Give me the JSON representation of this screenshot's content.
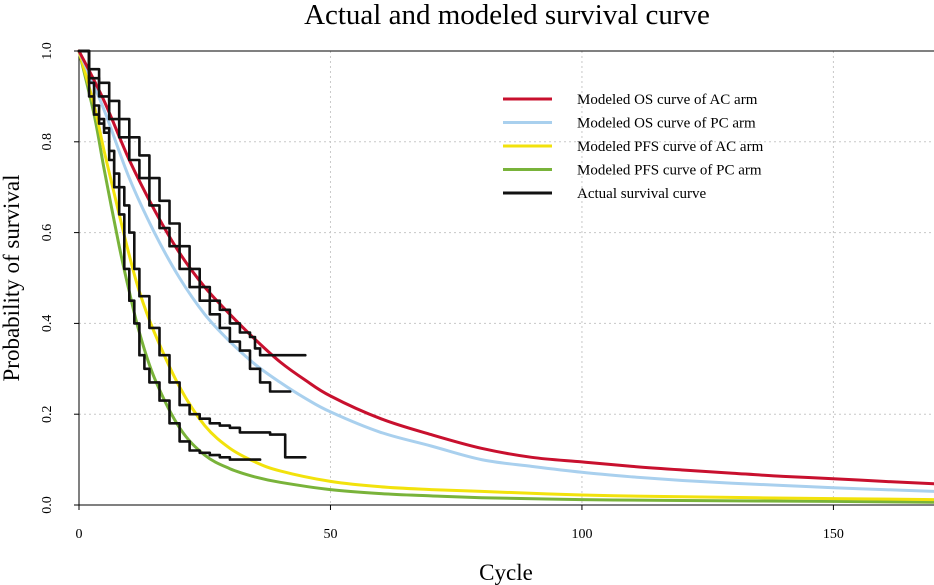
{
  "chart_data": {
    "type": "line",
    "title": "Actual and modeled survival curve",
    "xlabel": "Cycle",
    "ylabel": "Probability of survival",
    "xlim": [
      0,
      170
    ],
    "ylim": [
      0,
      1.0
    ],
    "x_ticks": [
      0,
      50,
      100,
      150
    ],
    "x_tick_labels": [
      "0",
      "50",
      "100",
      "150"
    ],
    "y_ticks": [
      0,
      0.2,
      0.4,
      0.6,
      0.8,
      1.0
    ],
    "y_tick_labels": [
      "0.0",
      "0.2",
      "0.4",
      "0.6",
      "0.8",
      "1.0"
    ],
    "x_grid": [
      50,
      100,
      150
    ],
    "y_grid": [
      0.2,
      0.4,
      0.6,
      0.8
    ],
    "grid": true,
    "legend_position": "top-right",
    "series": [
      {
        "name": "Modeled OS curve of AC arm",
        "color": "#c8102e",
        "kind": "model",
        "x": [
          0,
          5,
          10,
          15,
          20,
          25,
          30,
          35,
          40,
          45,
          50,
          60,
          70,
          80,
          90,
          100,
          110,
          120,
          130,
          140,
          150,
          160,
          170
        ],
        "y": [
          1.0,
          0.89,
          0.76,
          0.65,
          0.555,
          0.48,
          0.42,
          0.365,
          0.315,
          0.275,
          0.24,
          0.19,
          0.155,
          0.125,
          0.105,
          0.095,
          0.085,
          0.077,
          0.07,
          0.063,
          0.058,
          0.052,
          0.047
        ]
      },
      {
        "name": "Modeled OS curve of PC arm",
        "color": "#a9d0ee",
        "kind": "model",
        "x": [
          0,
          5,
          10,
          15,
          20,
          25,
          30,
          35,
          40,
          45,
          50,
          60,
          70,
          80,
          90,
          100,
          110,
          120,
          130,
          140,
          150,
          160,
          170
        ],
        "y": [
          1.0,
          0.87,
          0.72,
          0.6,
          0.5,
          0.42,
          0.36,
          0.31,
          0.27,
          0.235,
          0.205,
          0.16,
          0.13,
          0.1,
          0.085,
          0.072,
          0.062,
          0.054,
          0.048,
          0.043,
          0.038,
          0.034,
          0.03
        ]
      },
      {
        "name": "Modeled PFS curve of AC arm",
        "color": "#f2e20c",
        "kind": "model",
        "x": [
          0,
          3,
          5,
          8,
          10,
          12,
          15,
          20,
          25,
          30,
          35,
          40,
          50,
          60,
          70,
          80,
          100,
          120,
          150,
          170
        ],
        "y": [
          1.0,
          0.88,
          0.78,
          0.64,
          0.55,
          0.47,
          0.38,
          0.26,
          0.175,
          0.125,
          0.095,
          0.075,
          0.052,
          0.04,
          0.034,
          0.03,
          0.022,
          0.018,
          0.014,
          0.012
        ]
      },
      {
        "name": "Modeled PFS curve of PC arm",
        "color": "#79b33a",
        "kind": "model",
        "x": [
          0,
          3,
          5,
          8,
          10,
          12,
          15,
          20,
          25,
          30,
          35,
          40,
          50,
          60,
          70,
          80,
          100,
          120,
          150,
          170
        ],
        "y": [
          1.0,
          0.86,
          0.74,
          0.57,
          0.47,
          0.38,
          0.28,
          0.17,
          0.11,
          0.08,
          0.062,
          0.05,
          0.034,
          0.025,
          0.02,
          0.016,
          0.012,
          0.01,
          0.008,
          0.006
        ]
      },
      {
        "name": "Actual survival curve",
        "color": "#111111",
        "kind": "actual",
        "curves": [
          {
            "x": [
              0,
              2,
              4,
              6,
              8,
              10,
              12,
              14,
              16,
              18,
              20,
              22,
              24,
              26,
              28,
              30,
              32,
              34,
              35,
              36,
              38,
              40,
              42,
              45
            ],
            "y": [
              1.0,
              0.96,
              0.93,
              0.89,
              0.85,
              0.81,
              0.77,
              0.72,
              0.67,
              0.62,
              0.57,
              0.52,
              0.48,
              0.45,
              0.43,
              0.4,
              0.38,
              0.37,
              0.345,
              0.33,
              0.33,
              0.33,
              0.33,
              0.33
            ]
          },
          {
            "x": [
              0,
              2,
              4,
              6,
              8,
              10,
              12,
              14,
              16,
              18,
              20,
              22,
              24,
              26,
              28,
              30,
              32,
              34,
              36,
              38,
              40,
              42
            ],
            "y": [
              1.0,
              0.94,
              0.9,
              0.85,
              0.81,
              0.76,
              0.72,
              0.66,
              0.61,
              0.57,
              0.52,
              0.48,
              0.45,
              0.42,
              0.39,
              0.36,
              0.34,
              0.3,
              0.27,
              0.25,
              0.25,
              0.25
            ]
          },
          {
            "x": [
              0,
              2,
              3,
              4,
              5,
              6,
              7,
              8,
              9,
              10,
              11,
              12,
              14,
              16,
              18,
              20,
              22,
              24,
              26,
              28,
              30,
              32,
              34,
              36,
              38,
              40,
              41,
              42,
              45
            ],
            "y": [
              1.0,
              0.93,
              0.88,
              0.85,
              0.83,
              0.78,
              0.73,
              0.7,
              0.66,
              0.6,
              0.52,
              0.46,
              0.39,
              0.33,
              0.27,
              0.22,
              0.2,
              0.19,
              0.18,
              0.175,
              0.17,
              0.16,
              0.16,
              0.16,
              0.155,
              0.155,
              0.105,
              0.105,
              0.105
            ]
          },
          {
            "x": [
              0,
              2,
              3,
              4,
              5,
              6,
              7,
              8,
              9,
              10,
              11,
              12,
              13,
              14,
              16,
              18,
              20,
              22,
              24,
              26,
              28,
              30,
              32,
              34,
              36
            ],
            "y": [
              1.0,
              0.9,
              0.86,
              0.84,
              0.82,
              0.76,
              0.7,
              0.64,
              0.52,
              0.45,
              0.4,
              0.33,
              0.3,
              0.27,
              0.23,
              0.18,
              0.14,
              0.12,
              0.115,
              0.11,
              0.105,
              0.1,
              0.1,
              0.1,
              0.1
            ]
          }
        ]
      }
    ]
  }
}
